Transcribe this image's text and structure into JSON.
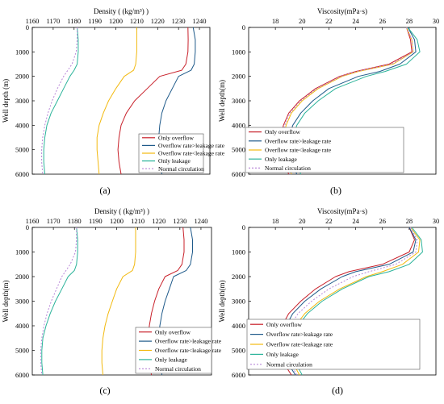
{
  "series_styles": [
    {
      "color": "#c8202a",
      "dash": ""
    },
    {
      "color": "#1f5a8a",
      "dash": ""
    },
    {
      "color": "#f2b90f",
      "dash": ""
    },
    {
      "color": "#2bb39a",
      "dash": ""
    },
    {
      "color": "#b886d8",
      "dash": "2,2"
    }
  ],
  "chart_data": [
    {
      "type": "line",
      "caption": "(a)",
      "xlabel": "Density ( (kg/m³) )",
      "ylabel": "Well depth (m)",
      "xlim": [
        1160,
        1245
      ],
      "ylim": [
        0,
        6000
      ],
      "xticks": [
        "1160",
        "1170",
        "1180",
        "1190",
        "1200",
        "1210",
        "1220",
        "1230",
        "1240"
      ],
      "yticks": [
        "0",
        "1000",
        "2000",
        "3000",
        "4000",
        "5000",
        "6000"
      ],
      "legend_position": "lower-right",
      "y": [
        0,
        500,
        1000,
        1500,
        1750,
        2000,
        2500,
        3000,
        3500,
        4000,
        4500,
        5000,
        5500,
        6000
      ],
      "series": [
        {
          "name": "Only overflow",
          "x": [
            1234.5,
            1234.6,
            1234.5,
            1233.5,
            1231.5,
            1221,
            1215,
            1209,
            1205,
            1202.5,
            1201.5,
            1201,
            1201.5,
            1202.5
          ]
        },
        {
          "name": "Overflow rate>leakage rate",
          "x": [
            1237,
            1238,
            1238,
            1237.5,
            1236,
            1230,
            1227,
            1224,
            1222,
            1221,
            1220.5,
            1220.5,
            1221,
            1222
          ]
        },
        {
          "name": "Overflow rate<leakage rate",
          "x": [
            1210,
            1210,
            1210,
            1209.5,
            1208.5,
            1204,
            1200,
            1196.5,
            1194,
            1192,
            1191,
            1191,
            1191.5,
            1192
          ]
        },
        {
          "name": "Only leakage",
          "x": [
            1181.5,
            1182,
            1182,
            1181.5,
            1180,
            1178,
            1175,
            1172,
            1169,
            1167,
            1166,
            1165.5,
            1165.5,
            1166
          ]
        },
        {
          "name": "Normal circulation",
          "x": [
            1181.5,
            1181.5,
            1181,
            1179,
            1177,
            1175,
            1172,
            1169.5,
            1167.5,
            1166,
            1165,
            1164.5,
            1164.5,
            1165
          ]
        }
      ]
    },
    {
      "type": "line",
      "caption": "(b)",
      "xlabel": "Viscosity(mPa·s)",
      "ylabel": "Well depth(m)",
      "xlim": [
        16,
        30
      ],
      "ylim": [
        0,
        6000
      ],
      "xticks": [
        "18",
        "20",
        "22",
        "24",
        "26",
        "28",
        "30"
      ],
      "yticks": [
        "0",
        "1000",
        "2000",
        "3000",
        "4000",
        "5000",
        "6000"
      ],
      "legend_position": "lower-right",
      "y": [
        0,
        500,
        1000,
        1500,
        1800,
        2000,
        2500,
        3000,
        3500,
        4000,
        4500,
        5000,
        5500,
        6000
      ],
      "series": [
        {
          "name": "Only overflow",
          "x": [
            27.8,
            28.1,
            28.2,
            26.5,
            24.0,
            22.8,
            21.0,
            19.8,
            19.0,
            18.6,
            18.4,
            18.4,
            18.6,
            19.0
          ]
        },
        {
          "name": "Overflow rate>leakage rate",
          "x": [
            27.9,
            28.4,
            28.5,
            27.3,
            25.8,
            24.2,
            22.0,
            20.8,
            19.9,
            19.3,
            19.0,
            19.0,
            19.2,
            19.6
          ]
        },
        {
          "name": "Overflow rate<leakage rate",
          "x": [
            27.8,
            28.2,
            28.3,
            26.8,
            24.2,
            23.0,
            21.2,
            20.0,
            19.2,
            18.8,
            18.6,
            18.6,
            18.8,
            19.2
          ]
        },
        {
          "name": "Only leakage",
          "x": [
            27.9,
            28.6,
            28.8,
            27.8,
            26.2,
            24.8,
            22.5,
            21.2,
            20.2,
            19.6,
            19.3,
            19.3,
            19.5,
            19.9
          ]
        },
        {
          "name": "Normal circulation",
          "x": [
            27.8,
            28.2,
            28.3,
            26.7,
            24.1,
            22.9,
            21.1,
            19.9,
            19.1,
            18.7,
            18.5,
            18.5,
            18.7,
            19.1
          ]
        }
      ]
    },
    {
      "type": "line",
      "caption": "(c)",
      "xlabel": "Density ( (kg/m³) )",
      "ylabel": "Well depth(m)",
      "xlim": [
        1160,
        1245
      ],
      "ylim": [
        0,
        6000
      ],
      "xticks": [
        "1160",
        "1170",
        "1180",
        "1190",
        "1200",
        "1210",
        "1220",
        "1230",
        "1240"
      ],
      "yticks": [
        "0",
        "1000",
        "2000",
        "3000",
        "4000",
        "5000",
        "6000"
      ],
      "legend_position": "lower-right",
      "y": [
        0,
        500,
        1000,
        1500,
        1750,
        2000,
        2500,
        3000,
        3500,
        4000,
        4500,
        5000,
        5500,
        6000
      ],
      "series": [
        {
          "name": "Only overflow",
          "x": [
            1231.5,
            1232,
            1232,
            1231,
            1229,
            1223,
            1220,
            1218,
            1216.5,
            1215.5,
            1215,
            1215,
            1215.5,
            1216.5
          ]
        },
        {
          "name": "Overflow rate>leakage rate",
          "x": [
            1235,
            1236,
            1236,
            1235,
            1233,
            1227,
            1225,
            1223,
            1221.5,
            1220.5,
            1220,
            1220,
            1220.5,
            1221.5
          ]
        },
        {
          "name": "Overflow rate<leakage rate",
          "x": [
            1209,
            1209,
            1209,
            1208.5,
            1207.5,
            1203,
            1200,
            1198,
            1196,
            1194.5,
            1193.5,
            1193,
            1193,
            1193.5
          ]
        },
        {
          "name": "Only leakage",
          "x": [
            1181,
            1181.5,
            1181.5,
            1181,
            1180,
            1177,
            1174,
            1171,
            1168.5,
            1166.5,
            1165,
            1164.5,
            1164.5,
            1165
          ]
        },
        {
          "name": "Normal circulation",
          "x": [
            1181,
            1181,
            1180.5,
            1178,
            1176,
            1174,
            1171.5,
            1169,
            1167,
            1165.5,
            1164.5,
            1164,
            1164,
            1164.5
          ]
        }
      ]
    },
    {
      "type": "line",
      "caption": "(d)",
      "xlabel": "Viscosity(mPa·s)",
      "ylabel": "Well depth(m)",
      "xlim": [
        16,
        30
      ],
      "ylim": [
        0,
        6000
      ],
      "xticks": [
        "18",
        "20",
        "22",
        "24",
        "26",
        "28",
        "30"
      ],
      "yticks": [
        "0",
        "1000",
        "2000",
        "3000",
        "4000",
        "5000",
        "6000"
      ],
      "legend_position": "lower-right",
      "y": [
        0,
        500,
        1000,
        1500,
        1800,
        2000,
        2500,
        3000,
        3500,
        4000,
        4500,
        5000,
        5500,
        6000
      ],
      "series": [
        {
          "name": "Only overflow",
          "x": [
            28.0,
            28.4,
            28.0,
            26.0,
            23.5,
            22.5,
            21.0,
            19.9,
            19.0,
            18.5,
            18.3,
            18.3,
            18.6,
            19.2
          ]
        },
        {
          "name": "Overflow rate>leakage rate",
          "x": [
            28.0,
            28.5,
            28.3,
            26.5,
            24.0,
            23.0,
            21.4,
            20.2,
            19.3,
            18.8,
            18.6,
            18.6,
            18.9,
            19.5
          ]
        },
        {
          "name": "Overflow rate<leakage rate",
          "x": [
            28.1,
            28.8,
            28.7,
            27.5,
            26.0,
            24.8,
            22.8,
            21.3,
            20.2,
            19.5,
            19.1,
            19.0,
            19.3,
            19.8
          ]
        },
        {
          "name": "Only leakage",
          "x": [
            28.2,
            28.9,
            29.0,
            28.0,
            26.5,
            25.0,
            23.0,
            21.5,
            20.4,
            19.7,
            19.3,
            19.2,
            19.5,
            20.0
          ]
        },
        {
          "name": "Normal circulation",
          "x": [
            28.1,
            28.6,
            28.5,
            27.0,
            25.0,
            23.8,
            22.0,
            20.7,
            19.7,
            19.1,
            18.8,
            18.8,
            19.1,
            19.6
          ]
        }
      ]
    }
  ]
}
